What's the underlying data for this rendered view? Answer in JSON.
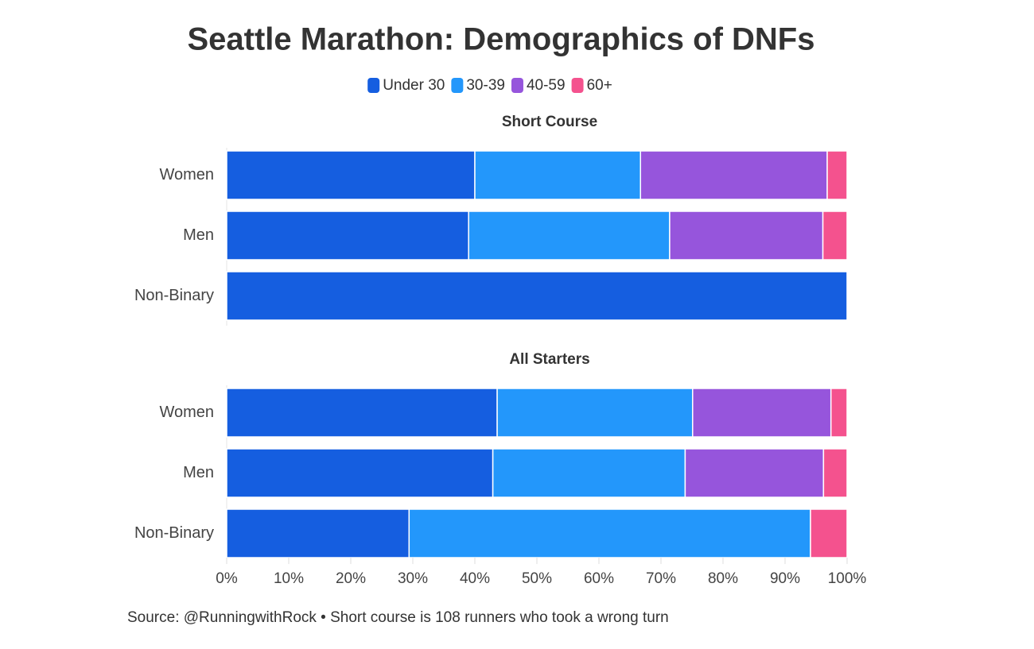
{
  "title": "Seattle Marathon: Demographics of DNFs",
  "source": "Source: @RunningwithRock • Short course is 108 runners who took a wrong turn",
  "chart_data": [
    {
      "type": "bar",
      "orientation": "horizontal",
      "stacked": true,
      "subtitle": "Short Course",
      "categories": [
        "Women",
        "Men",
        "Non-Binary"
      ],
      "series": [
        {
          "name": "Under 30",
          "color": "#155ee0",
          "values": [
            40.0,
            39.0,
            100
          ]
        },
        {
          "name": "30-39",
          "color": "#2397fb",
          "values": [
            26.7,
            32.4,
            0
          ]
        },
        {
          "name": "40-59",
          "color": "#9655dc",
          "values": [
            30.1,
            24.7,
            0
          ]
        },
        {
          "name": "60+",
          "color": "#f4528e",
          "values": [
            3.2,
            3.9,
            0
          ]
        }
      ],
      "xlim": [
        0,
        100
      ]
    },
    {
      "type": "bar",
      "orientation": "horizontal",
      "stacked": true,
      "subtitle": "All Starters",
      "categories": [
        "Women",
        "Men",
        "Non-Binary"
      ],
      "series": [
        {
          "color": "#155ee0",
          "values": [
            43.6,
            42.9,
            29.4
          ]
        },
        {
          "color": "#2397fb",
          "values": [
            31.5,
            31.0,
            64.7
          ]
        },
        {
          "color": "#9655dc",
          "values": [
            22.3,
            22.3,
            0
          ]
        },
        {
          "color": "#f4528e",
          "values": [
            2.6,
            3.8,
            5.9
          ]
        }
      ],
      "xlim": [
        0,
        100
      ],
      "xticks": [
        {
          "value": 0,
          "label": "0%"
        },
        {
          "value": 10,
          "label": "10%"
        },
        {
          "value": 20,
          "label": "20%"
        },
        {
          "value": 30,
          "label": "30%"
        },
        {
          "value": 40,
          "label": "40%"
        },
        {
          "value": 50,
          "label": "50%"
        },
        {
          "value": 60,
          "label": "60%"
        },
        {
          "value": 70,
          "label": "70%"
        },
        {
          "value": 80,
          "label": "80%"
        },
        {
          "value": 90,
          "label": "90%"
        },
        {
          "value": 100,
          "label": "100%"
        }
      ]
    }
  ]
}
